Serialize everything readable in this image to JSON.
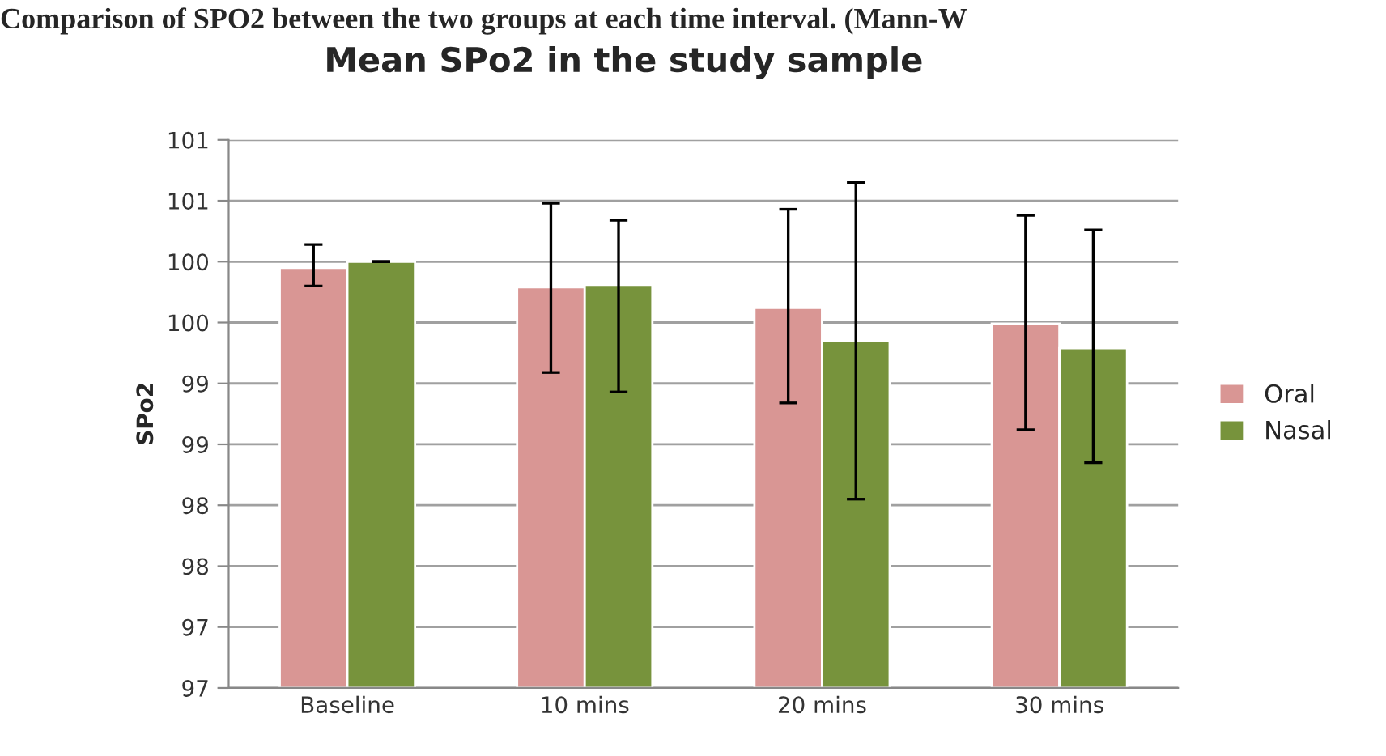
{
  "chart_data": {
    "type": "bar",
    "title": "Mean SPo2 in the study sample",
    "ylabel": "SPo2",
    "annotations": [
      "Comparison of SPO2 between the two groups at each time interval. (Mann-W"
    ],
    "categories": [
      "Baseline",
      "10 mins",
      "20 mins",
      "30 mins"
    ],
    "series": [
      {
        "name": "Oral",
        "color": "#d99694",
        "values": [
          99.95,
          99.79,
          99.62,
          99.49
        ],
        "errors": [
          [
            99.8,
            100.14
          ],
          [
            99.09,
            100.48
          ],
          [
            98.84,
            100.43
          ],
          [
            98.62,
            100.38
          ]
        ]
      },
      {
        "name": "Nasal",
        "color": "#77933c",
        "values": [
          100.0,
          99.81,
          99.35,
          99.29
        ],
        "errors": [
          [
            100.0,
            100.0
          ],
          [
            98.93,
            100.34
          ],
          [
            98.05,
            100.65
          ],
          [
            98.35,
            100.26
          ]
        ]
      }
    ],
    "ylim": [
      96.5,
      101
    ],
    "yticks": [
      {
        "value": 96.5,
        "label": "97"
      },
      {
        "value": 97,
        "label": "97"
      },
      {
        "value": 97.5,
        "label": "98"
      },
      {
        "value": 98,
        "label": "98"
      },
      {
        "value": 98.5,
        "label": "99"
      },
      {
        "value": 99,
        "label": "99"
      },
      {
        "value": 99.5,
        "label": "100"
      },
      {
        "value": 100,
        "label": "100"
      },
      {
        "value": 100.5,
        "label": "101"
      },
      {
        "value": 101,
        "label": "101"
      }
    ],
    "grid": "y",
    "legend": "right"
  }
}
